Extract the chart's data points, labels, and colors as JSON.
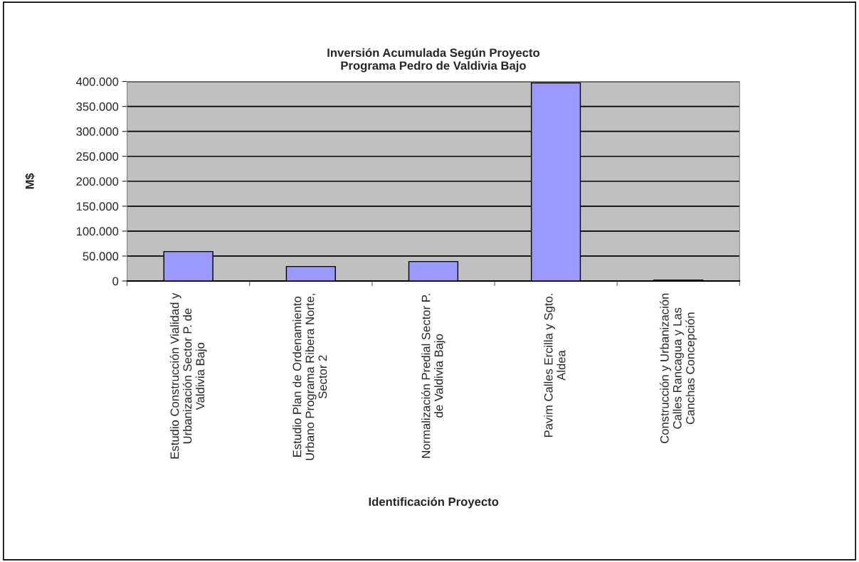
{
  "chart_data": {
    "type": "bar",
    "title": "Inversión Acumulada Según Proyecto\nPrograma Pedro de Valdivia Bajo",
    "xlabel": "Identificación Proyecto",
    "ylabel": "M$",
    "categories": [
      "Estudio Construcción Vialidad y\nUrbanización Sector P. de\nValdivia Bajo",
      "Estudio Plan de Ordenamiento\nUrbano Programa Ribera Norte,\nSector 2",
      "Normalización Predial Sector P.\nde Valdivia Bajo",
      "Pavim Calles Ercilla y Sgto.\nAldea",
      "Construcción y Urbanización\nCalles Rancagua y Las\nCanchas Concepción"
    ],
    "values": [
      59000,
      29000,
      39000,
      397000,
      2000
    ],
    "color": "#9999ff",
    "ylim": [
      0,
      400000
    ],
    "yticks": [
      0,
      {
        "value": 50000,
        "label": "50.000"
      },
      {
        "value": 100000,
        "label": "100.000"
      },
      {
        "value": 150000,
        "label": "150.000"
      },
      {
        "value": 200000,
        "label": "200.000"
      },
      {
        "value": 250000,
        "label": "250.000"
      },
      {
        "value": 300000,
        "label": "300.000"
      },
      {
        "value": 350000,
        "label": "350.000"
      },
      {
        "value": 400000,
        "label": "400.000"
      }
    ],
    "grid": "y"
  }
}
